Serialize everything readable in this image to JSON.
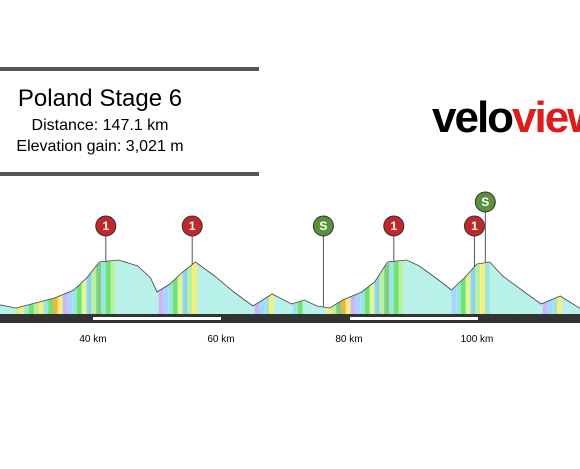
{
  "stage": {
    "title": "Poland Stage 6",
    "distance": "Distance: 147.1 km",
    "elevation_gain": "Elevation gain: 3,021 m"
  },
  "logo": {
    "part1": "velo",
    "part2": "view",
    "colors": {
      "velo": "#000000",
      "view": "#dd1c1c"
    }
  },
  "axis": {
    "ticks": [
      {
        "km": 40,
        "label": "40 km"
      },
      {
        "km": 60,
        "label": "60 km"
      },
      {
        "km": 80,
        "label": "80 km"
      },
      {
        "km": 100,
        "label": "100 km"
      }
    ]
  },
  "markers": [
    {
      "type": "climb",
      "label": "1",
      "km": 42,
      "color": "#c0272d"
    },
    {
      "type": "climb",
      "label": "1",
      "km": 55.5,
      "color": "#c0272d"
    },
    {
      "type": "sprint",
      "label": "S",
      "km": 76,
      "color": "#5a8f3c"
    },
    {
      "type": "climb",
      "label": "1",
      "km": 87,
      "color": "#c0272d"
    },
    {
      "type": "climb",
      "label": "1",
      "km": 99.6,
      "color": "#c0272d"
    },
    {
      "type": "sprint",
      "label": "S",
      "km": 101.3,
      "color": "#5a8f3c"
    }
  ]
}
